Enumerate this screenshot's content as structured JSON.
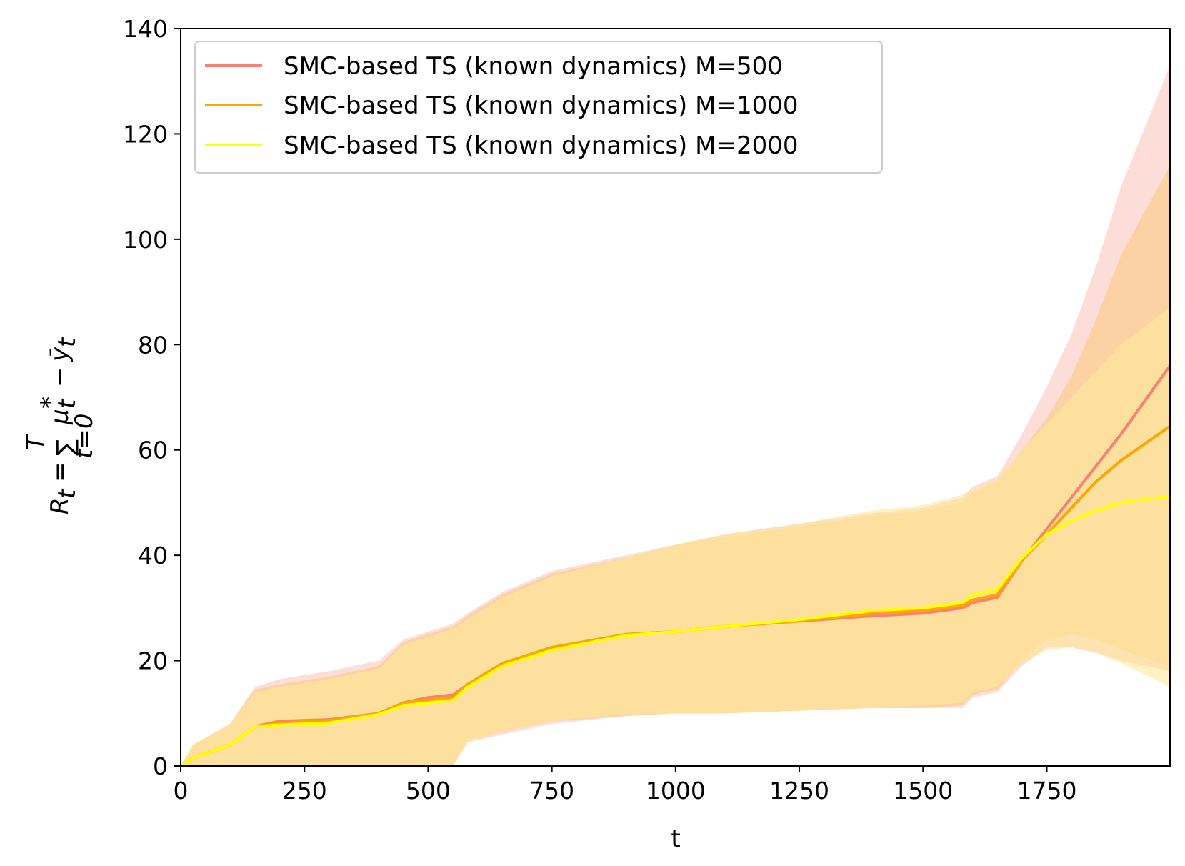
{
  "chart_data": {
    "type": "line",
    "title": "",
    "xlabel": "t",
    "ylabel": "R_t = Σ_{t=0}^{T} μ*_t − ȳ_t",
    "ylabel_parts": {
      "R": "R",
      "t": "t",
      "eq": "=",
      "sum": "∑",
      "upper": "T",
      "lower": "t=0",
      "mu": "μ",
      "star": "*",
      "minus": "−",
      "ybar": "ȳ"
    },
    "xlim": [
      0,
      1999
    ],
    "ylim": [
      0,
      140
    ],
    "xticks": [
      0,
      250,
      500,
      750,
      1000,
      1250,
      1500,
      1750
    ],
    "xtick_labels": [
      "0",
      "250",
      "500",
      "750",
      "1000",
      "1250",
      "1500",
      "1750"
    ],
    "yticks": [
      0,
      20,
      40,
      60,
      80,
      100,
      120,
      140
    ],
    "ytick_labels": [
      "0",
      "20",
      "40",
      "60",
      "80",
      "100",
      "120",
      "140"
    ],
    "grid": false,
    "legend_position": "top-left",
    "series": [
      {
        "name": "SMC-based TS (known dynamics) M=500",
        "color": "#fa8072",
        "band_color": "#f9c1b6",
        "x": [
          0,
          25,
          100,
          150,
          200,
          300,
          400,
          450,
          500,
          550,
          580,
          650,
          750,
          900,
          1000,
          1100,
          1250,
          1400,
          1500,
          1580,
          1600,
          1650,
          1700,
          1750,
          1800,
          1850,
          1900,
          1999
        ],
        "mean": [
          0,
          1.5,
          4,
          7.5,
          8.5,
          8.8,
          10,
          12,
          13,
          13.5,
          15.5,
          19.5,
          22.5,
          25,
          25.5,
          26.5,
          27.5,
          28.5,
          29,
          30,
          31,
          32,
          39,
          45,
          51,
          57,
          63,
          76
        ],
        "lower": [
          0,
          0,
          0,
          0,
          0,
          0,
          0,
          0,
          0,
          0,
          4.5,
          6,
          8,
          9.5,
          10,
          10,
          10.5,
          11,
          11,
          11,
          13,
          14,
          19,
          22.5,
          22.5,
          21.5,
          20,
          18
        ],
        "upper": [
          0,
          4,
          8,
          15,
          16.5,
          18,
          20,
          24,
          25.5,
          27,
          29,
          33,
          37,
          40,
          42,
          44,
          46,
          48,
          49,
          51,
          53,
          55,
          63,
          72,
          82,
          95,
          110,
          133
        ]
      },
      {
        "name": "SMC-based TS (known dynamics) M=1000",
        "color": "#ffa500",
        "band_color": "#fbcb83",
        "x": [
          0,
          25,
          100,
          150,
          200,
          300,
          400,
          450,
          500,
          550,
          580,
          650,
          750,
          900,
          1000,
          1100,
          1250,
          1400,
          1500,
          1580,
          1600,
          1650,
          1700,
          1750,
          1800,
          1850,
          1900,
          1999
        ],
        "mean": [
          0,
          1.5,
          4,
          7.5,
          8.2,
          8.6,
          10,
          12,
          12.5,
          13,
          15.5,
          19.5,
          22.5,
          25,
          25.5,
          26.5,
          27.5,
          29,
          29.5,
          30.5,
          31.5,
          32.5,
          39,
          44,
          49,
          54,
          58,
          64.5
        ],
        "lower": [
          0,
          0,
          0,
          0,
          0,
          0,
          0,
          0,
          0,
          0,
          5,
          6.5,
          8.5,
          9.5,
          10,
          10,
          10.5,
          11,
          11,
          11.5,
          13.5,
          14.5,
          20,
          24,
          25,
          24,
          22,
          19
        ],
        "upper": [
          0,
          4,
          8,
          14.5,
          15.5,
          17,
          19,
          23.5,
          25,
          26.5,
          28.5,
          32.5,
          36.5,
          39.5,
          42,
          43.5,
          45.5,
          47.5,
          48.5,
          50,
          52,
          54,
          60,
          66,
          74,
          85,
          97,
          114
        ]
      },
      {
        "name": "SMC-based TS (known dynamics) M=2000",
        "color": "#ffff00",
        "band_color": "#fde89a",
        "x": [
          0,
          25,
          100,
          150,
          200,
          300,
          400,
          450,
          500,
          550,
          580,
          650,
          750,
          900,
          1000,
          1100,
          1250,
          1400,
          1500,
          1580,
          1600,
          1650,
          1700,
          1750,
          1800,
          1850,
          1900,
          1999
        ],
        "mean": [
          0,
          1.5,
          4,
          7.5,
          7.8,
          8.2,
          9.8,
          11.5,
          12,
          12.5,
          15,
          19,
          22,
          24.8,
          25.5,
          26.5,
          27.8,
          29.5,
          30,
          31,
          32.5,
          33.5,
          39.5,
          44,
          46.5,
          48.5,
          50,
          51.2
        ],
        "lower": [
          0,
          0,
          0,
          0,
          0,
          0,
          0,
          0,
          0,
          0,
          4.5,
          6.5,
          8.5,
          9.8,
          10,
          10,
          10.5,
          11,
          11.5,
          12,
          14,
          15,
          19.5,
          22,
          22.5,
          21.5,
          19.5,
          15
        ],
        "upper": [
          0,
          4,
          8,
          14,
          15,
          16.5,
          18.5,
          23,
          24.5,
          26,
          28,
          32,
          36,
          39.5,
          42,
          44,
          46,
          48.5,
          49.5,
          51.5,
          52.5,
          54.5,
          60,
          65,
          70,
          75,
          80,
          87
        ]
      }
    ]
  }
}
